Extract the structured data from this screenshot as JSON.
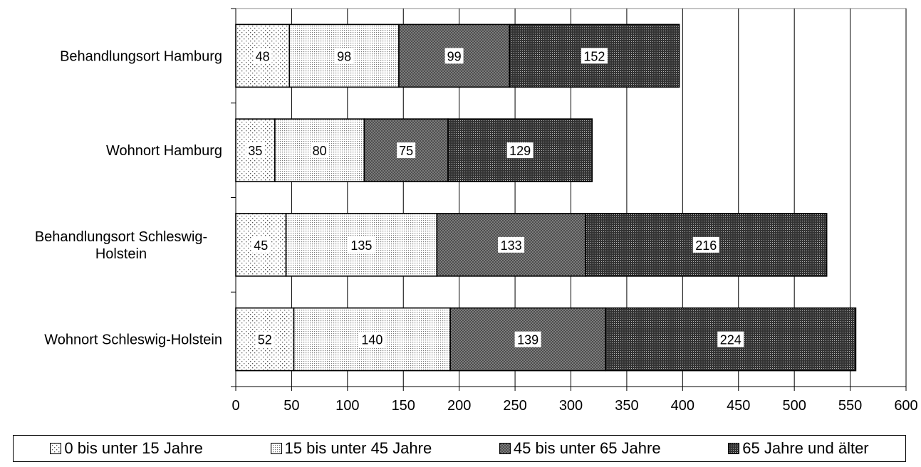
{
  "chart_data": {
    "type": "bar",
    "orientation": "horizontal",
    "stacked": true,
    "categories": [
      "Behandlungsort Hamburg",
      "Wohnort Hamburg",
      "Behandlungsort Schleswig-Holstein",
      "Wohnort Schleswig-Holstein"
    ],
    "category_lines": [
      [
        "Behandlungsort Hamburg"
      ],
      [
        "Wohnort Hamburg"
      ],
      [
        "Behandlungsort Schleswig-",
        "Holstein"
      ],
      [
        "Wohnort Schleswig-Holstein"
      ]
    ],
    "series": [
      {
        "name": "0 bis unter 15 Jahre",
        "values": [
          48,
          35,
          45,
          52
        ],
        "pattern": "sparse-dots"
      },
      {
        "name": "15 bis unter 45 Jahre",
        "values": [
          98,
          80,
          135,
          140
        ],
        "pattern": "dense-dots"
      },
      {
        "name": "45 bis unter 65 Jahre",
        "values": [
          99,
          75,
          133,
          139
        ],
        "pattern": "crosshatch"
      },
      {
        "name": "65 Jahre und älter",
        "values": [
          152,
          129,
          216,
          224
        ],
        "pattern": "dark-dots"
      }
    ],
    "xlim": [
      0,
      600
    ],
    "xticks": [
      "0",
      "50",
      "100",
      "150",
      "200",
      "250",
      "300",
      "350",
      "400",
      "450",
      "500",
      "550",
      "600"
    ],
    "xlabel": "",
    "ylabel": "",
    "title": "",
    "grid": "vertical",
    "legend_position": "bottom"
  }
}
